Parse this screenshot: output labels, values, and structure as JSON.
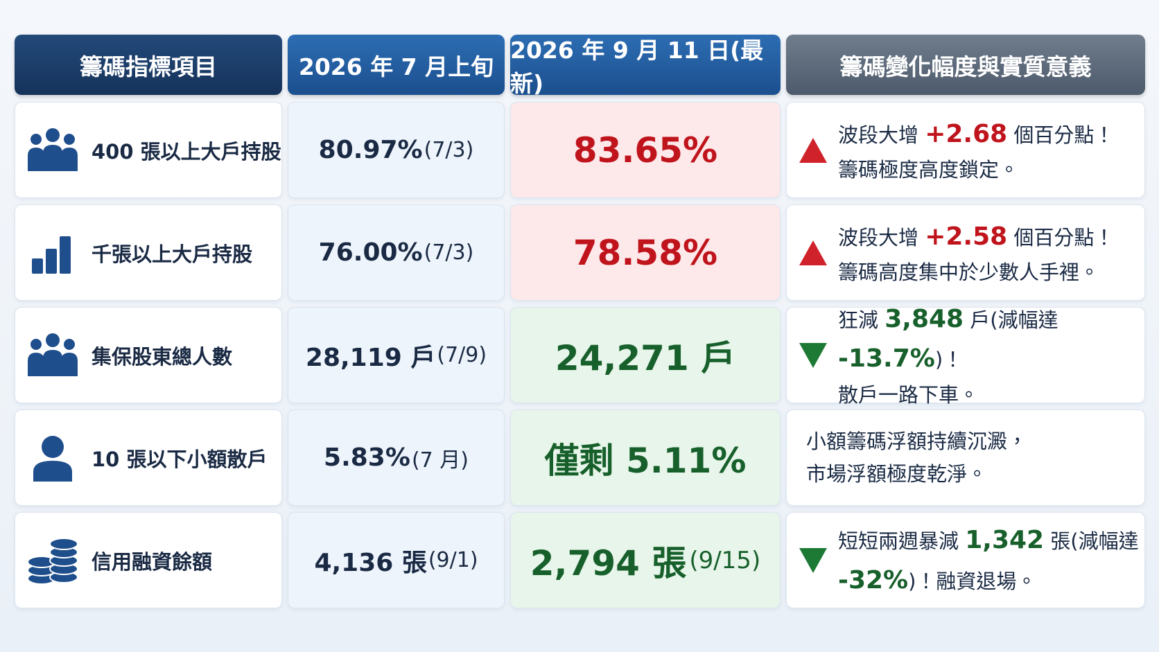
{
  "header": [
    "籌碼指標項目",
    "2026 年 7 月上旬",
    "2026 年 9 月 11 日(最新)",
    "籌碼變化幅度與實質意義"
  ],
  "rows": [
    {
      "icon": "group",
      "item": "400 張以上大戶持股",
      "prev": "80.97%",
      "prev_date": "(7/3)",
      "latest": "83.65%",
      "tone": "red",
      "trend": "up",
      "note": [
        [
          {
            "text": "波段大增 "
          },
          {
            "text": "+2.68",
            "bold": true
          },
          {
            "text": " 個百分點！"
          }
        ],
        [
          {
            "text": "籌碼極度高度鎖定。"
          }
        ]
      ]
    },
    {
      "icon": "bars",
      "item": "千張以上大戶持股",
      "prev": "76.00%",
      "prev_date": "(7/3)",
      "latest": "78.58%",
      "tone": "red",
      "trend": "up",
      "note": [
        [
          {
            "text": "波段大增 "
          },
          {
            "text": "+2.58",
            "bold": true
          },
          {
            "text": " 個百分點！"
          }
        ],
        [
          {
            "text": "籌碼高度集中於少數人手裡。"
          }
        ]
      ]
    },
    {
      "icon": "group",
      "item": "集保股東總人數",
      "prev": "28,119 戶",
      "prev_date": "(7/9)",
      "latest": "24,271 戶",
      "tone": "green",
      "trend": "down",
      "note": [
        [
          {
            "text": "狂減 "
          },
          {
            "text": "3,848",
            "bold": true
          },
          {
            "text": " 戶(減幅達 "
          },
          {
            "text": "-13.7%",
            "bold": true
          },
          {
            "text": ")！"
          }
        ],
        [
          {
            "text": "散戶一路下車。"
          }
        ]
      ]
    },
    {
      "icon": "person",
      "item": "10 張以下小額散戶",
      "prev": "5.83%",
      "prev_date": "(7 月)",
      "latest": "僅剩 5.11%",
      "tone": "green",
      "trend": null,
      "note": [
        [
          {
            "text": "小額籌碼浮額持續沉澱，"
          }
        ],
        [
          {
            "text": "市場浮額極度乾淨。"
          }
        ]
      ]
    },
    {
      "icon": "coins",
      "item": "信用融資餘額",
      "prev": "4,136 張",
      "prev_date": "(9/1)",
      "latest": "2,794 張",
      "latest_date": "(9/15)",
      "tone": "green",
      "trend": "down",
      "note": [
        [
          {
            "text": "短短兩週暴減 "
          },
          {
            "text": "1,342",
            "bold": true
          },
          {
            "text": " 張(減幅達"
          }
        ],
        [
          {
            "text": "-32%",
            "bold": true
          },
          {
            "text": ")！融資退場。"
          }
        ]
      ]
    }
  ]
}
